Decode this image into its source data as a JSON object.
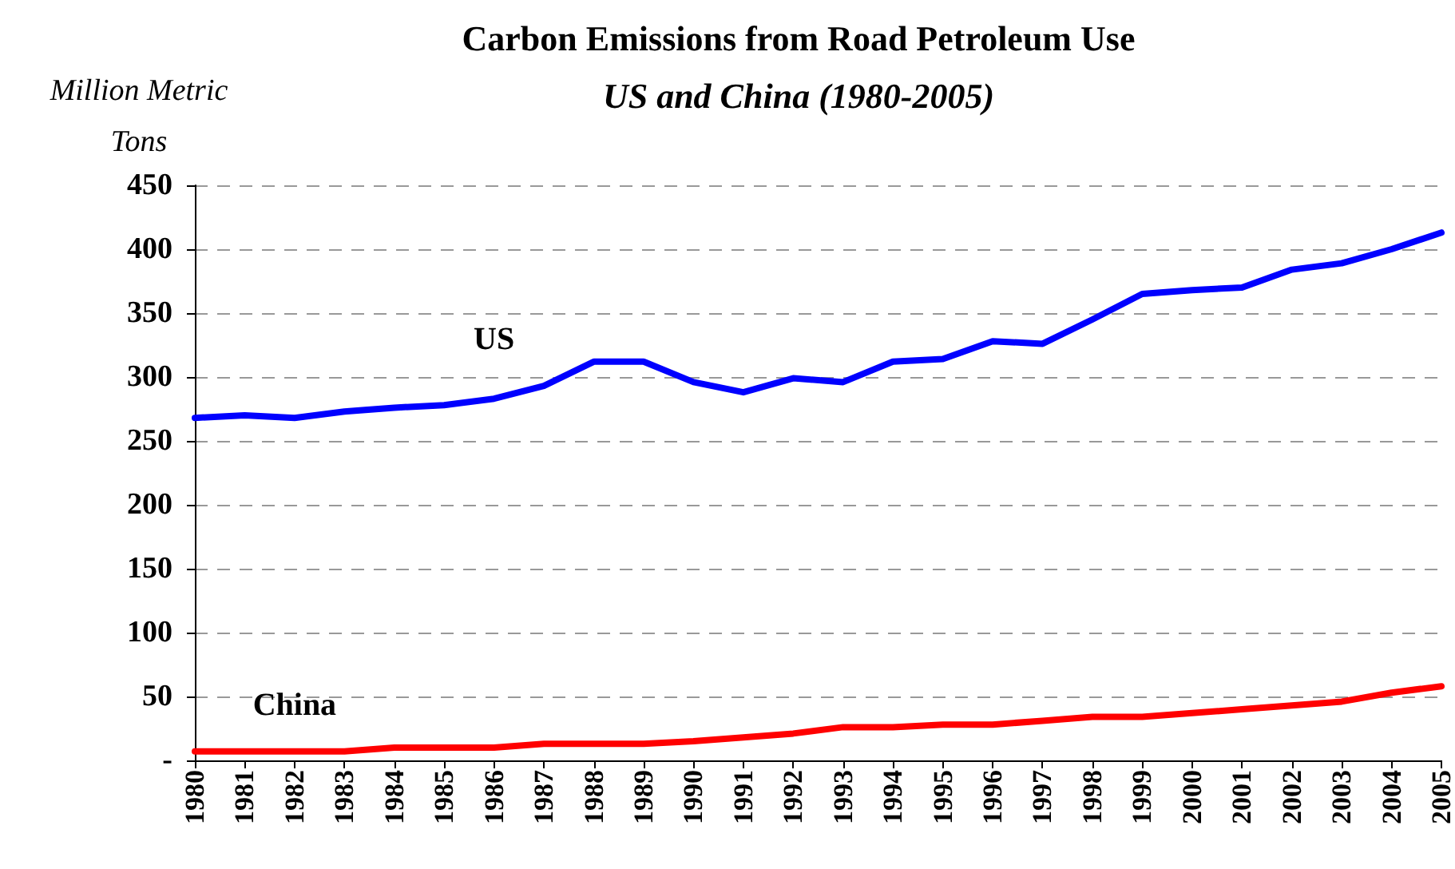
{
  "chart_data": {
    "type": "line",
    "title": "Carbon Emissions from Road Petroleum Use",
    "subtitle": "US and China (1980-2005)",
    "ylabel": "Million Metric Tons",
    "categories": [
      "1980",
      "1981",
      "1982",
      "1983",
      "1984",
      "1985",
      "1986",
      "1987",
      "1988",
      "1989",
      "1990",
      "1991",
      "1992",
      "1993",
      "1994",
      "1995",
      "1996",
      "1997",
      "1998",
      "1999",
      "2000",
      "2001",
      "2002",
      "2003",
      "2004",
      "2005"
    ],
    "series": [
      {
        "name": "US",
        "color": "#0000ff",
        "values": [
          268,
          270,
          268,
          273,
          276,
          278,
          283,
          293,
          312,
          312,
          296,
          288,
          299,
          296,
          312,
          314,
          328,
          326,
          345,
          365,
          368,
          370,
          384,
          389,
          400,
          413
        ]
      },
      {
        "name": "China",
        "color": "#ff0000",
        "values": [
          7,
          7,
          7,
          7,
          10,
          10,
          10,
          13,
          13,
          13,
          15,
          18,
          21,
          26,
          26,
          28,
          28,
          31,
          34,
          34,
          37,
          40,
          43,
          46,
          53,
          58
        ]
      }
    ],
    "ylim": [
      0,
      450
    ],
    "yticks": [
      {
        "value": 0,
        "label": "-"
      },
      50,
      100,
      150,
      200,
      250,
      300,
      350,
      400,
      450
    ],
    "grid": "y",
    "legend": false,
    "marker": "none",
    "line_style": "solid"
  }
}
